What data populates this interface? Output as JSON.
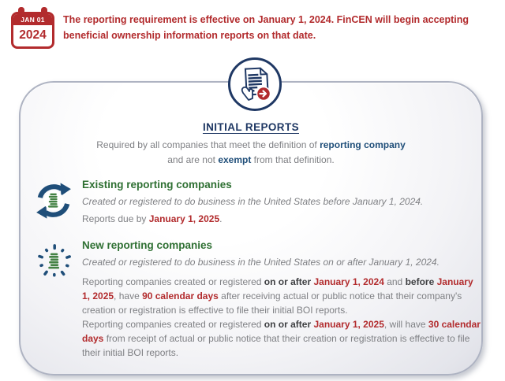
{
  "banner": {
    "calendar": {
      "header": "JAN 01",
      "year": "2024"
    },
    "text_lines": [
      "The reporting requirement is effective on January 1, 2024. FinCEN will begin accepting",
      "beneficial ownership information reports on that date."
    ]
  },
  "panel": {
    "title": "INITIAL REPORTS",
    "intro_lines": [
      [
        {
          "t": "Required by all companies that meet the definition of "
        },
        {
          "t": "reporting company",
          "s": "navy"
        }
      ],
      [
        {
          "t": "and are not "
        },
        {
          "t": "exempt",
          "s": "navy"
        },
        {
          "t": " from that definition."
        }
      ]
    ],
    "sections": [
      {
        "id": "existing",
        "icon": "refresh-building-icon",
        "heading": "Existing reporting companies",
        "lines": {
          "registered": [
            {
              "t": "Created or registered to do business in the United States before January 1, 2024."
            }
          ],
          "due": [
            {
              "t": "Reports due by "
            },
            {
              "t": "January 1, 2025",
              "s": "red"
            },
            {
              "t": "."
            }
          ]
        }
      },
      {
        "id": "new",
        "icon": "sparkle-building-icon",
        "heading": "New reporting companies",
        "lines": {
          "registered": [
            {
              "t": "Created or registered to do business in the United States on or after January 1, 2024."
            }
          ],
          "rule90": [
            {
              "t": "Reporting companies created or registered "
            },
            {
              "t": "on or after ",
              "s": "dark"
            },
            {
              "t": "January 1, 2024",
              "s": "red"
            },
            {
              "t": " and "
            },
            {
              "t": "before ",
              "s": "dark"
            },
            {
              "t": "January 1, 2025",
              "s": "red"
            },
            {
              "t": ", have "
            },
            {
              "t": "90 calendar days",
              "s": "red"
            },
            {
              "t": " after receiving actual or public notice that their company's creation or registration is effective to file their initial BOI reports."
            }
          ],
          "rule30": [
            {
              "t": "Reporting companies created or registered "
            },
            {
              "t": "on or after ",
              "s": "dark"
            },
            {
              "t": "January 1, 2025",
              "s": "red"
            },
            {
              "t": ", will have "
            },
            {
              "t": "30 calendar days",
              "s": "red"
            },
            {
              "t": " from receipt of actual or public notice that their creation or registration is effective to file their initial BOI reports."
            }
          ]
        }
      }
    ]
  },
  "colors": {
    "red": "#B22B2D",
    "navy": "#1F3864",
    "blue": "#1F4E79",
    "green": "#2F7033",
    "gray": "#7F8084",
    "dark": "#3F4043",
    "building": "#448244",
    "panel-border": "#AEB3C2"
  }
}
